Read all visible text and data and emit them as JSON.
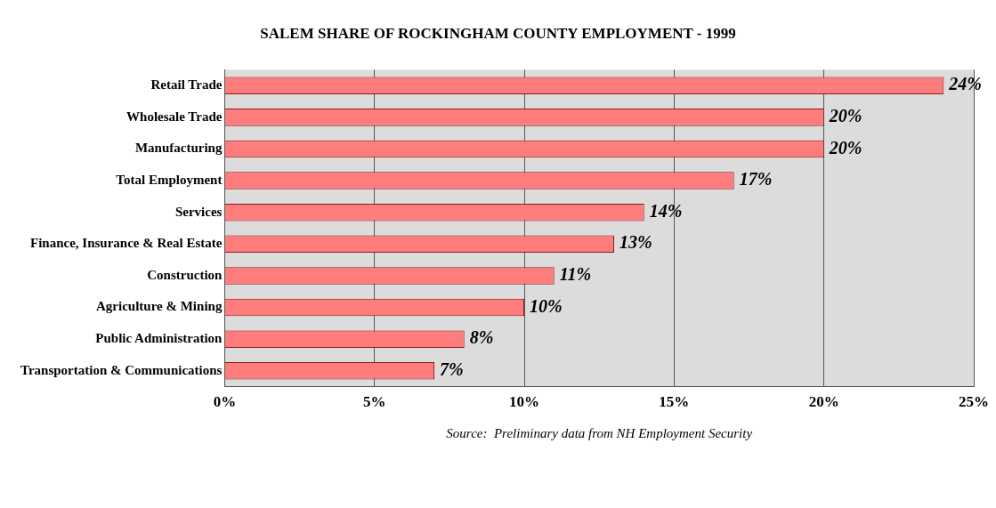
{
  "chart_data": {
    "type": "bar",
    "orientation": "horizontal",
    "title": "SALEM SHARE OF ROCKINGHAM COUNTY EMPLOYMENT - 1999",
    "categories": [
      "Retail Trade",
      "Wholesale Trade",
      "Manufacturing",
      "Total Employment",
      "Services",
      "Finance, Insurance & Real Estate",
      "Construction",
      "Agriculture & Mining",
      "Public Administration",
      "Transportation & Communications"
    ],
    "values": [
      24,
      20,
      20,
      17,
      14,
      13,
      11,
      10,
      8,
      7
    ],
    "value_labels": [
      "24%",
      "20%",
      "20%",
      "17%",
      "14%",
      "13%",
      "11%",
      "10%",
      "8%",
      "7%"
    ],
    "color": "#ff7c7c",
    "xlim": [
      0,
      25
    ],
    "xticks": [
      {
        "value": 0,
        "label": "0%"
      },
      {
        "value": 5,
        "label": "5%"
      },
      {
        "value": 10,
        "label": "10%"
      },
      {
        "value": 15,
        "label": "15%"
      },
      {
        "value": 20,
        "label": "20%"
      },
      {
        "value": 25,
        "label": "25%"
      }
    ],
    "grid": "x",
    "legend": false,
    "annotations": [
      "Source:  Preliminary data from NH Employment Security"
    ]
  }
}
